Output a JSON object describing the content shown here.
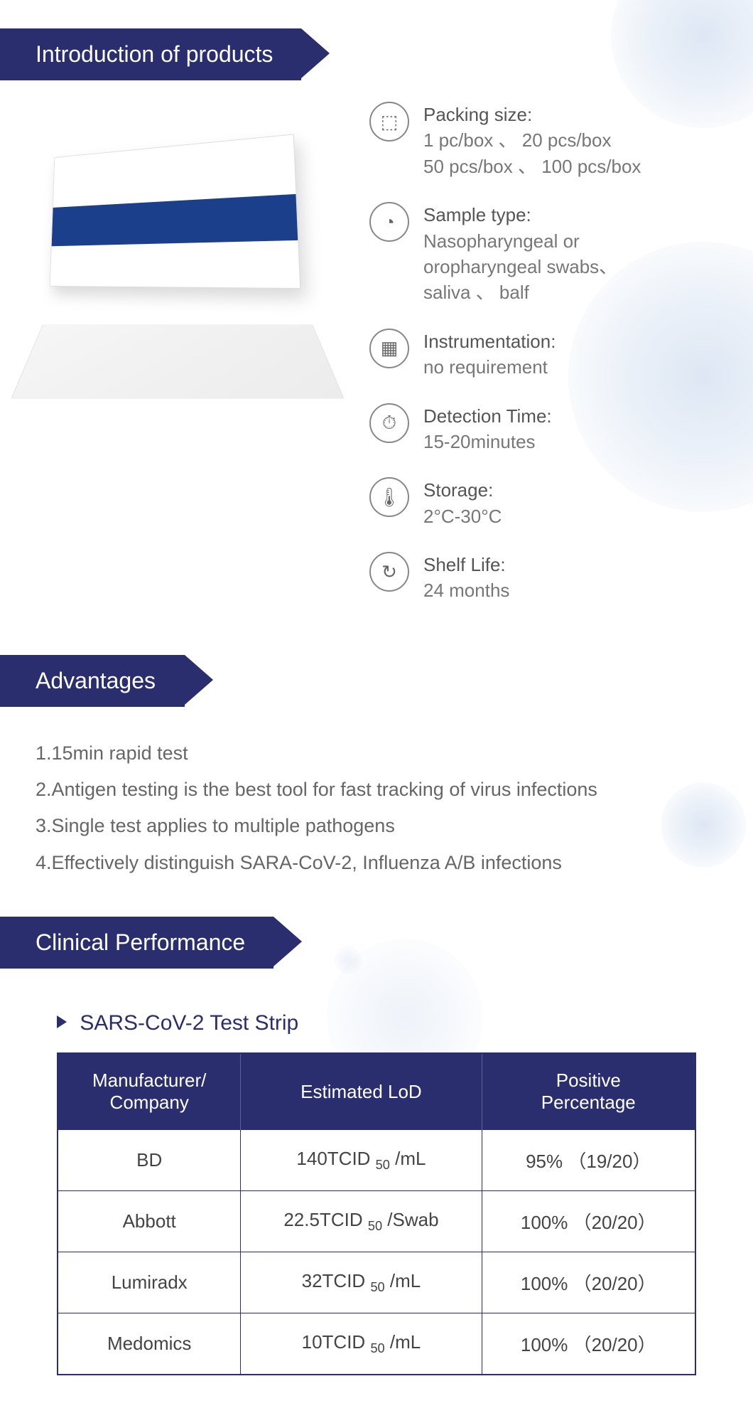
{
  "colors": {
    "brand_navy": "#2a2e6e",
    "text_grey": "#666666",
    "text_mid": "#555555",
    "virus_tint": "#7aa0d2",
    "bg": "#ffffff",
    "table_border": "#2a2e6e"
  },
  "typography": {
    "header_fontsize": 32,
    "body_fontsize": 27,
    "spec_fontsize": 26,
    "subtitle_fontsize": 30,
    "table_fontsize": 26
  },
  "sections": {
    "intro_title": "Introduction of products",
    "advantages_title": "Advantages",
    "clinical_title": "Clinical Performance"
  },
  "specs": [
    {
      "icon": "box-icon",
      "glyph": "⬚",
      "label": "Packing size:",
      "value": "1 pc/box 、 20 pcs/box\n50 pcs/box 、 100 pcs/box"
    },
    {
      "icon": "sample-icon",
      "glyph": "◔",
      "label": "Sample type:",
      "value": "Nasopharyngeal or\noropharyngeal swabs、\nsaliva 、 balf"
    },
    {
      "icon": "instr-icon",
      "glyph": "▦",
      "label": "Instrumentation:",
      "value": "no requirement"
    },
    {
      "icon": "time-icon",
      "glyph": "⏱",
      "label": "Detection Time:",
      "value": "15-20minutes"
    },
    {
      "icon": "temp-icon",
      "glyph": "🌡",
      "label": "Storage:",
      "value": "2°C-30°C"
    },
    {
      "icon": "shelf-icon",
      "glyph": "↻",
      "label": "Shelf Life:",
      "value": "24 months"
    }
  ],
  "advantages": [
    "1.15min rapid test",
    "2.Antigen testing is the best tool for fast tracking of virus infections",
    "3.Single test applies to multiple pathogens",
    "4.Effectively distinguish SARA-CoV-2, Influenza A/B infections"
  ],
  "clinical": {
    "subtitle": "SARS-CoV-2 Test Strip",
    "table": {
      "type": "table",
      "columns": [
        "Manufacturer/\nCompany",
        "Estimated LoD",
        "Positive\nPercentage"
      ],
      "col_widths_pct": [
        33,
        33,
        34
      ],
      "rows": [
        {
          "company": "BD",
          "lod_num": "140",
          "lod_unit": "/mL",
          "pct": "95% （19/20）"
        },
        {
          "company": "Abbott",
          "lod_num": "22.5",
          "lod_unit": "/Swab",
          "pct": "100% （20/20）"
        },
        {
          "company": "Lumiradx",
          "lod_num": "32",
          "lod_unit": "/mL",
          "pct": "100% （20/20）"
        },
        {
          "company": "Medomics",
          "lod_num": "10",
          "lod_unit": "/mL",
          "pct": "100% （20/20）"
        }
      ],
      "lod_prefix": "TCID",
      "lod_sub": "50",
      "header_bg": "#2a2e6e",
      "header_color": "#ffffff",
      "cell_color": "#444444",
      "border_color": "#2a2e6e"
    }
  }
}
